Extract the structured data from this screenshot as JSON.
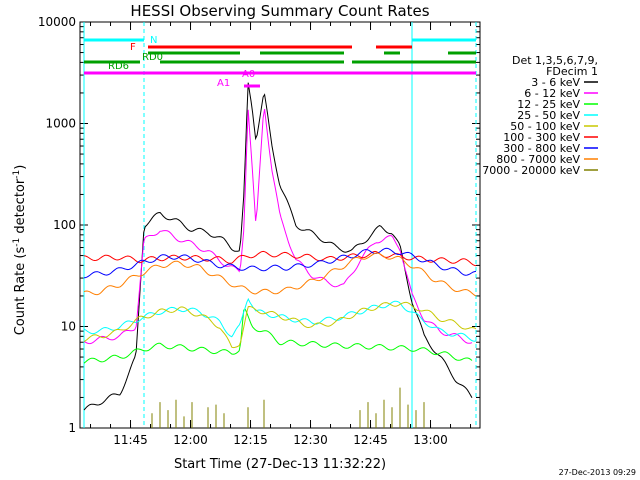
{
  "chart_data": {
    "type": "line",
    "title": "HESSI Observing Summary Count Rates",
    "xlabel": "Start Time (27-Dec-13 11:32:22)",
    "ylabel_main": "Count Rate (s",
    "ylabel_sup1": "-1",
    "ylabel_mid": " detector",
    "ylabel_sup2": "-1",
    "ylabel_end": ")",
    "xlim_minutes": [
      0,
      100
    ],
    "ylim": [
      1,
      10000
    ],
    "yscale": "log",
    "x_tick_labels": [
      "11:45",
      "12:00",
      "12:15",
      "12:30",
      "12:45",
      "13:00"
    ],
    "x_tick_minutes": [
      12.63,
      27.63,
      42.63,
      57.63,
      72.63,
      87.63
    ],
    "y_tick_labels": [
      "1",
      "10",
      "100",
      "1000",
      "10000"
    ],
    "y_tick_values": [
      1,
      10,
      100,
      1000,
      10000
    ],
    "legend_header": [
      "Det 1,3,5,6,7,9,",
      "FDecim 1"
    ],
    "series": [
      {
        "name": "3 - 6 keV",
        "color": "#000000",
        "points": [
          [
            1,
            1.5
          ],
          [
            5,
            1.8
          ],
          [
            10,
            2.2
          ],
          [
            14,
            5
          ],
          [
            16,
            100
          ],
          [
            20,
            130
          ],
          [
            24,
            110
          ],
          [
            28,
            90
          ],
          [
            32,
            85
          ],
          [
            36,
            70
          ],
          [
            38,
            60
          ],
          [
            40,
            55
          ],
          [
            41,
            200
          ],
          [
            42,
            2500
          ],
          [
            43,
            1500
          ],
          [
            44,
            700
          ],
          [
            46,
            2000
          ],
          [
            48,
            600
          ],
          [
            50,
            250
          ],
          [
            54,
            100
          ],
          [
            60,
            75
          ],
          [
            64,
            60
          ],
          [
            68,
            55
          ],
          [
            72,
            75
          ],
          [
            75,
            95
          ],
          [
            78,
            85
          ],
          [
            80,
            60
          ],
          [
            83,
            18
          ],
          [
            86,
            8
          ],
          [
            90,
            5
          ],
          [
            94,
            3
          ],
          [
            98,
            2
          ]
        ]
      },
      {
        "name": "6 - 12 keV",
        "color": "#ff00ff",
        "points": [
          [
            1,
            7
          ],
          [
            5,
            7.5
          ],
          [
            10,
            8
          ],
          [
            14,
            10
          ],
          [
            16,
            70
          ],
          [
            20,
            90
          ],
          [
            24,
            75
          ],
          [
            28,
            65
          ],
          [
            32,
            55
          ],
          [
            36,
            42
          ],
          [
            38,
            38
          ],
          [
            40,
            34
          ],
          [
            41,
            100
          ],
          [
            42,
            1500
          ],
          [
            43,
            400
          ],
          [
            44,
            90
          ],
          [
            46,
            1600
          ],
          [
            48,
            350
          ],
          [
            50,
            120
          ],
          [
            54,
            45
          ],
          [
            58,
            32
          ],
          [
            62,
            27
          ],
          [
            66,
            25
          ],
          [
            70,
            45
          ],
          [
            74,
            70
          ],
          [
            78,
            75
          ],
          [
            80,
            60
          ],
          [
            83,
            20
          ],
          [
            86,
            12
          ],
          [
            90,
            9
          ],
          [
            94,
            8
          ],
          [
            98,
            7
          ]
        ]
      },
      {
        "name": "12 - 25 keV",
        "color": "#00ff00",
        "points": [
          [
            1,
            4.5
          ],
          [
            10,
            5
          ],
          [
            16,
            6
          ],
          [
            20,
            6.5
          ],
          [
            26,
            6.2
          ],
          [
            32,
            5.8
          ],
          [
            38,
            5.5
          ],
          [
            40,
            6
          ],
          [
            41,
            15
          ],
          [
            42,
            12
          ],
          [
            43,
            10
          ],
          [
            46,
            9
          ],
          [
            50,
            7
          ],
          [
            56,
            6.8
          ],
          [
            64,
            6.5
          ],
          [
            70,
            6.4
          ],
          [
            78,
            6.2
          ],
          [
            84,
            6
          ],
          [
            90,
            5.5
          ],
          [
            98,
            4.5
          ]
        ]
      },
      {
        "name": "25 - 50 keV",
        "color": "#00ffff",
        "points": [
          [
            1,
            9
          ],
          [
            5,
            9
          ],
          [
            10,
            10
          ],
          [
            15,
            12
          ],
          [
            20,
            14
          ],
          [
            25,
            15
          ],
          [
            30,
            14
          ],
          [
            35,
            11
          ],
          [
            38,
            8
          ],
          [
            40,
            10
          ],
          [
            42,
            20
          ],
          [
            44,
            14
          ],
          [
            48,
            13
          ],
          [
            52,
            12
          ],
          [
            58,
            11
          ],
          [
            64,
            12
          ],
          [
            70,
            14
          ],
          [
            75,
            16
          ],
          [
            80,
            17
          ],
          [
            85,
            12
          ],
          [
            90,
            9
          ],
          [
            96,
            8
          ],
          [
            99,
            7.5
          ]
        ]
      },
      {
        "name": "50 - 100 keV",
        "color": "#c8c800",
        "points": [
          [
            1,
            7.5
          ],
          [
            5,
            8
          ],
          [
            10,
            9
          ],
          [
            15,
            12
          ],
          [
            20,
            14
          ],
          [
            25,
            15
          ],
          [
            30,
            13
          ],
          [
            35,
            10
          ],
          [
            38,
            6
          ],
          [
            40,
            7
          ],
          [
            42,
            15
          ],
          [
            46,
            14
          ],
          [
            52,
            12
          ],
          [
            58,
            10
          ],
          [
            64,
            11
          ],
          [
            70,
            14
          ],
          [
            75,
            16
          ],
          [
            80,
            17
          ],
          [
            85,
            15
          ],
          [
            90,
            12
          ],
          [
            96,
            10
          ],
          [
            99,
            9
          ]
        ]
      },
      {
        "name": "100 - 300 keV",
        "color": "#ff0000",
        "points": [
          [
            1,
            47
          ],
          [
            10,
            48
          ],
          [
            15,
            45
          ],
          [
            20,
            47
          ],
          [
            25,
            48
          ],
          [
            30,
            47
          ],
          [
            35,
            46
          ],
          [
            38,
            44
          ],
          [
            42,
            50
          ],
          [
            46,
            52
          ],
          [
            50,
            51
          ],
          [
            54,
            50
          ],
          [
            58,
            48
          ],
          [
            62,
            46
          ],
          [
            66,
            48
          ],
          [
            70,
            50
          ],
          [
            74,
            52
          ],
          [
            78,
            50
          ],
          [
            82,
            48
          ],
          [
            86,
            46
          ],
          [
            90,
            45
          ],
          [
            96,
            44
          ],
          [
            99,
            42
          ]
        ]
      },
      {
        "name": "300 - 800 keV",
        "color": "#0000ff",
        "points": [
          [
            1,
            32
          ],
          [
            5,
            33
          ],
          [
            10,
            36
          ],
          [
            15,
            42
          ],
          [
            20,
            48
          ],
          [
            25,
            49
          ],
          [
            30,
            45
          ],
          [
            35,
            40
          ],
          [
            40,
            38
          ],
          [
            44,
            37
          ],
          [
            48,
            38
          ],
          [
            52,
            38
          ],
          [
            56,
            40
          ],
          [
            60,
            42
          ],
          [
            64,
            46
          ],
          [
            68,
            50
          ],
          [
            72,
            55
          ],
          [
            76,
            56
          ],
          [
            80,
            54
          ],
          [
            84,
            48
          ],
          [
            88,
            42
          ],
          [
            92,
            37
          ],
          [
            96,
            34
          ],
          [
            99,
            33
          ]
        ]
      },
      {
        "name": "800 - 7000 keV",
        "color": "#ff7f00",
        "points": [
          [
            1,
            21
          ],
          [
            5,
            22
          ],
          [
            10,
            26
          ],
          [
            15,
            33
          ],
          [
            20,
            40
          ],
          [
            25,
            42
          ],
          [
            30,
            38
          ],
          [
            35,
            30
          ],
          [
            40,
            24
          ],
          [
            44,
            22
          ],
          [
            48,
            22
          ],
          [
            52,
            23
          ],
          [
            56,
            26
          ],
          [
            60,
            30
          ],
          [
            64,
            36
          ],
          [
            68,
            44
          ],
          [
            72,
            50
          ],
          [
            76,
            50
          ],
          [
            80,
            46
          ],
          [
            84,
            38
          ],
          [
            88,
            30
          ],
          [
            92,
            25
          ],
          [
            96,
            22
          ],
          [
            99,
            21
          ]
        ]
      },
      {
        "name": "7000 - 20000 keV",
        "color": "#808000",
        "points": [
          [
            18,
            1.4
          ],
          [
            20,
            1.8
          ],
          [
            22,
            1.5
          ],
          [
            24,
            1.9
          ],
          [
            26,
            1.3
          ],
          [
            28,
            1.8
          ],
          [
            32,
            1.6
          ],
          [
            34,
            1.7
          ],
          [
            36,
            1.4
          ],
          [
            42,
            1.6
          ],
          [
            46,
            1.9
          ],
          [
            70,
            1.5
          ],
          [
            72,
            1.8
          ],
          [
            74,
            1.4
          ],
          [
            76,
            1.9
          ],
          [
            78,
            1.6
          ],
          [
            80,
            2.5
          ],
          [
            82,
            1.7
          ],
          [
            84,
            1.5
          ],
          [
            86,
            1.8
          ]
        ]
      }
    ],
    "flag_bars": [
      {
        "label": "N",
        "color": "#00ffff",
        "y": 40,
        "segments": [
          [
            1,
            16
          ],
          [
            83,
            99
          ]
        ]
      },
      {
        "label": "F",
        "color": "#ff0000",
        "y": 47,
        "segments": [
          [
            17,
            68
          ],
          [
            74,
            83
          ]
        ]
      },
      {
        "label": "RD0",
        "color": "#00a000",
        "y": 53,
        "segments": [
          [
            17,
            40
          ],
          [
            45,
            66
          ],
          [
            76,
            80
          ],
          [
            92,
            99
          ]
        ]
      },
      {
        "label": "RD6",
        "color": "#00a000",
        "y": 62,
        "segments": [
          [
            1,
            15
          ],
          [
            20,
            66
          ],
          [
            68,
            99
          ]
        ]
      },
      {
        "label": "A1",
        "color": "#ff00ff",
        "y": 86,
        "segments": [
          [
            41,
            45
          ]
        ]
      },
      {
        "label": "A0",
        "color": "#ff00ff",
        "y": 73,
        "segments": [
          [
            1,
            99
          ]
        ]
      }
    ],
    "annotations": [
      {
        "text": "N",
        "color": "#00ffff"
      },
      {
        "text": "F",
        "color": "#ff0000"
      },
      {
        "text": "RD0",
        "color": "#00a000"
      },
      {
        "text": "RD6",
        "color": "#00a000"
      },
      {
        "text": "A1",
        "color": "#ff00ff"
      },
      {
        "text": "A0",
        "color": "#ff00ff"
      }
    ],
    "vertical_markers": [
      {
        "minute": 1,
        "style": "solid",
        "color": "#00ffff"
      },
      {
        "minute": 16,
        "style": "dashed",
        "color": "#00ffff"
      },
      {
        "minute": 83,
        "style": "solid",
        "color": "#00ffff"
      },
      {
        "minute": 99,
        "style": "dashed",
        "color": "#00ffff"
      }
    ],
    "footer_stamp": "27-Dec-2013 09:29"
  }
}
